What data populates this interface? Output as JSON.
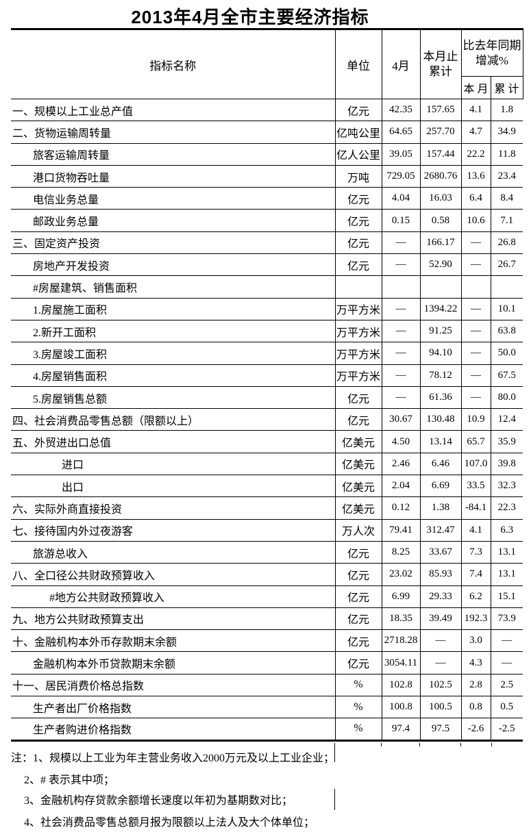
{
  "title": "2013年4月全市主要经济指标",
  "colors": {
    "text": "#000000",
    "background": "#ffffff",
    "border": "#000000"
  },
  "table": {
    "header": {
      "indicator": "指标名称",
      "unit": "单位",
      "month": "4月",
      "cumulative_line1": "本月止",
      "cumulative_line2": "累计",
      "growth_line1": "比去年同期",
      "growth_line2": "增减%",
      "growth_month": "本 月",
      "growth_cumulative": "累 计"
    },
    "rows": [
      {
        "name": "一、规模以上工业总产值",
        "indent": 0,
        "unit": "亿元",
        "month": "42.35",
        "cumulative": "157.65",
        "mom": "4.1",
        "yoy": "1.8"
      },
      {
        "name": "二、货物运输周转量",
        "indent": 0,
        "unit": "亿吨公里",
        "month": "64.65",
        "cumulative": "257.70",
        "mom": "4.7",
        "yoy": "34.9"
      },
      {
        "name": "旅客运输周转量",
        "indent": 1,
        "unit": "亿人公里",
        "month": "39.05",
        "cumulative": "157.44",
        "mom": "22.2",
        "yoy": "11.8"
      },
      {
        "name": "港口货物吞吐量",
        "indent": 1,
        "unit": "万吨",
        "month": "729.05",
        "cumulative": "2680.76",
        "mom": "13.6",
        "yoy": "23.4"
      },
      {
        "name": "电信业务总量",
        "indent": 1,
        "unit": "亿元",
        "month": "4.04",
        "cumulative": "16.03",
        "mom": "6.4",
        "yoy": "8.4"
      },
      {
        "name": "邮政业务总量",
        "indent": 1,
        "unit": "亿元",
        "month": "0.15",
        "cumulative": "0.58",
        "mom": "10.6",
        "yoy": "7.1"
      },
      {
        "name": "三、固定资产投资",
        "indent": 0,
        "unit": "亿元",
        "month": "—",
        "cumulative": "166.17",
        "mom": "—",
        "yoy": "26.8"
      },
      {
        "name": "房地产开发投资",
        "indent": 1,
        "unit": "亿元",
        "month": "—",
        "cumulative": "52.90",
        "mom": "—",
        "yoy": "26.7"
      },
      {
        "name": "#房屋建筑、销售面积",
        "indent": 1,
        "unit": "",
        "month": "",
        "cumulative": "",
        "mom": "",
        "yoy": ""
      },
      {
        "name": "1.房屋施工面积",
        "indent": 1,
        "unit": "万平方米",
        "month": "—",
        "cumulative": "1394.22",
        "mom": "—",
        "yoy": "10.1"
      },
      {
        "name": "2.新开工面积",
        "indent": 1,
        "unit": "万平方米",
        "month": "—",
        "cumulative": "91.25",
        "mom": "—",
        "yoy": "63.8"
      },
      {
        "name": "3.房屋竣工面积",
        "indent": 1,
        "unit": "万平方米",
        "month": "—",
        "cumulative": "94.10",
        "mom": "—",
        "yoy": "50.0"
      },
      {
        "name": "4.房屋销售面积",
        "indent": 1,
        "unit": "万平方米",
        "month": "—",
        "cumulative": "78.12",
        "mom": "—",
        "yoy": "67.5"
      },
      {
        "name": "5.房屋销售总额",
        "indent": 1,
        "unit": "亿元",
        "month": "—",
        "cumulative": "61.36",
        "mom": "—",
        "yoy": "80.0"
      },
      {
        "name": "四、社会消费品零售总额（限额以上）",
        "indent": 0,
        "unit": "亿元",
        "month": "30.67",
        "cumulative": "130.48",
        "mom": "10.9",
        "yoy": "12.4"
      },
      {
        "name": "五、外贸进出口总值",
        "indent": 0,
        "unit": "亿美元",
        "month": "4.50",
        "cumulative": "13.14",
        "mom": "65.7",
        "yoy": "35.9"
      },
      {
        "name": "进口",
        "indent": 3,
        "unit": "亿美元",
        "month": "2.46",
        "cumulative": "6.46",
        "mom": "107.0",
        "yoy": "39.8"
      },
      {
        "name": "出口",
        "indent": 3,
        "unit": "亿美元",
        "month": "2.04",
        "cumulative": "6.69",
        "mom": "33.5",
        "yoy": "32.3"
      },
      {
        "name": "六、实际外商直接投资",
        "indent": 0,
        "unit": "亿美元",
        "month": "0.12",
        "cumulative": "1.38",
        "mom": "-84.1",
        "yoy": "22.3"
      },
      {
        "name": "七、接待国内外过夜游客",
        "indent": 0,
        "unit": "万人次",
        "month": "79.41",
        "cumulative": "312.47",
        "mom": "4.1",
        "yoy": "6.3"
      },
      {
        "name": "旅游总收入",
        "indent": 1,
        "unit": "亿元",
        "month": "8.25",
        "cumulative": "33.67",
        "mom": "7.3",
        "yoy": "13.1"
      },
      {
        "name": "八、全口径公共财政预算收入",
        "indent": 0,
        "unit": "亿元",
        "month": "23.02",
        "cumulative": "85.93",
        "mom": "7.4",
        "yoy": "13.1"
      },
      {
        "name": "#地方公共财政预算收入",
        "indent": 2,
        "unit": "亿元",
        "month": "6.99",
        "cumulative": "29.33",
        "mom": "6.2",
        "yoy": "15.1"
      },
      {
        "name": "九、地方公共财政预算支出",
        "indent": 0,
        "unit": "亿元",
        "month": "18.35",
        "cumulative": "39.49",
        "mom": "192.3",
        "yoy": "73.9"
      },
      {
        "name": "十、金融机构本外币存款期末余额",
        "indent": 0,
        "unit": "亿元",
        "month": "2718.28",
        "cumulative": "—",
        "mom": "3.0",
        "yoy": "—"
      },
      {
        "name": "金融机构本外币贷款期末余额",
        "indent": 1,
        "unit": "亿元",
        "month": "3054.11",
        "cumulative": "—",
        "mom": "4.3",
        "yoy": "—"
      },
      {
        "name": "十一、居民消费价格总指数",
        "indent": 0,
        "unit": "%",
        "month": "102.8",
        "cumulative": "102.5",
        "mom": "2.8",
        "yoy": "2.5"
      },
      {
        "name": "生产者出厂价格指数",
        "indent": 1,
        "unit": "%",
        "month": "100.8",
        "cumulative": "100.5",
        "mom": "0.8",
        "yoy": "0.5"
      },
      {
        "name": "生产者购进价格指数",
        "indent": 1,
        "unit": "%",
        "month": "97.4",
        "cumulative": "97.5",
        "mom": "-2.6",
        "yoy": "-2.5"
      }
    ]
  },
  "notes": [
    "注：1、规模以上工业为年主营业务收入2000万元及以上工业企业；",
    "2、# 表示其中项；",
    "3、金融机构存贷款余额增长速度以年初为基期数对比；",
    "4、社会消费品零售总额月报为限额以上法人及大个体单位；"
  ]
}
